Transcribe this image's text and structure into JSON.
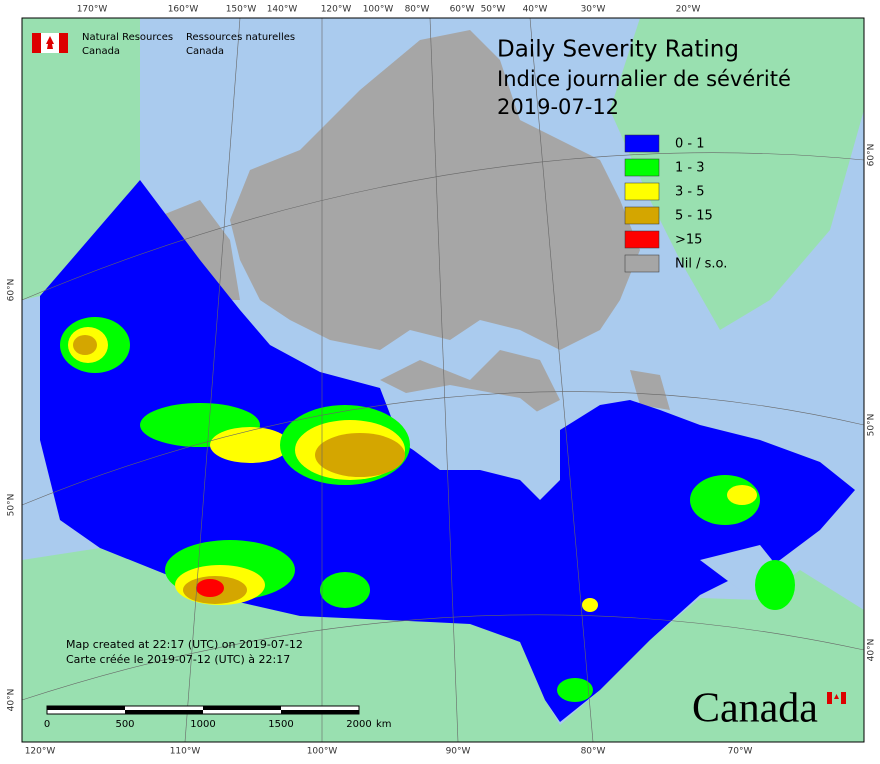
{
  "header": {
    "agency_en": [
      "Natural Resources",
      "Canada"
    ],
    "agency_fr": [
      "Ressources naturelles",
      "Canada"
    ]
  },
  "title": [
    "Daily Severity Rating",
    "Indice journalier de sévérité",
    "2019-07-12"
  ],
  "legend": [
    {
      "label": "0 - 1",
      "color": "#0000ff"
    },
    {
      "label": "1 - 3",
      "color": "#00ff00"
    },
    {
      "label": "3 - 5",
      "color": "#ffff00"
    },
    {
      "label": "5 - 15",
      "color": "#d4a600"
    },
    {
      "label": ">15",
      "color": "#ff0000"
    },
    {
      "label": "Nil / s.o.",
      "color": "#a6a6a6"
    }
  ],
  "graticule": {
    "top": [
      "170°W",
      "160°W",
      "150°W",
      "140°W",
      "120°W",
      "100°W",
      "80°W",
      "60°W",
      "50°W",
      "40°W",
      "30°W",
      "20°W"
    ],
    "bottom": [
      "120°W",
      "110°W",
      "100°W",
      "90°W",
      "80°W",
      "70°W"
    ],
    "left": [
      "60°N",
      "50°N",
      "40°N"
    ],
    "right": [
      "60°N",
      "50°N",
      "40°N"
    ]
  },
  "footer": [
    "Map created at 22:17 (UTC) on 2019-07-12",
    "Carte créée le 2019-07-12 (UTC) à 22:17"
  ],
  "scale_bar": {
    "ticks": [
      "0",
      "500",
      "1000",
      "1500",
      "2000"
    ],
    "unit": "km"
  },
  "wordmark": "Canada"
}
